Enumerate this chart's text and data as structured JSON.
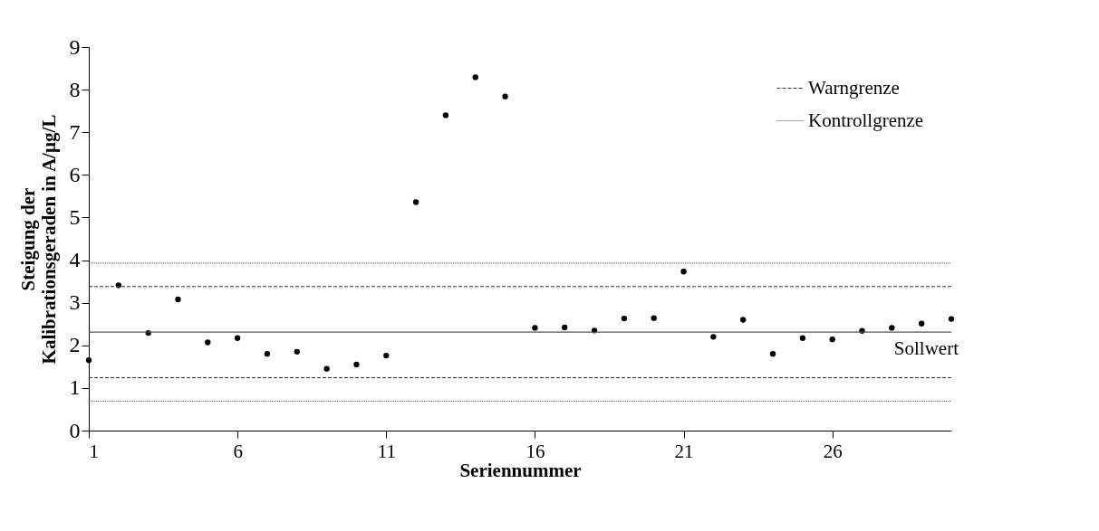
{
  "chart_data": {
    "type": "scatter",
    "xlabel": "Seriennummer",
    "ylabel": "Steigung der\nKalibrationsgeraden in A/µg/L",
    "series": [
      {
        "color": "#000000",
        "x": [
          1,
          2,
          3,
          4,
          5,
          6,
          7,
          8,
          9,
          10,
          11,
          12,
          13,
          14,
          15,
          16,
          17,
          18,
          19,
          20,
          21,
          22,
          23,
          24,
          25,
          26,
          27,
          28,
          29,
          30
        ],
        "values": [
          1.65,
          3.41,
          2.29,
          3.08,
          2.07,
          2.17,
          1.8,
          1.85,
          1.45,
          1.55,
          1.76,
          5.36,
          7.4,
          8.29,
          7.84,
          2.41,
          2.42,
          2.35,
          2.63,
          2.64,
          3.73,
          2.2,
          2.6,
          1.8,
          2.17,
          2.14,
          2.34,
          2.41,
          2.51,
          2.62
        ]
      }
    ],
    "xlim": [
      1,
      30
    ],
    "xticks": [
      1,
      6,
      11,
      16,
      21,
      26
    ],
    "ylim": [
      0,
      9
    ],
    "yticks": [
      0,
      1,
      2,
      3,
      4,
      5,
      6,
      7,
      8,
      9
    ],
    "ref_lines": [
      {
        "axis": "y",
        "value": 3.93,
        "label": "Kontrollgrenze",
        "line_style": "dotted",
        "color": "#555555"
      },
      {
        "axis": "y",
        "value": 3.38,
        "label": "Warngrenze",
        "line_style": "dashed",
        "color": "#333333"
      },
      {
        "axis": "y",
        "value": 2.31,
        "label": "Sollwert",
        "line_style": "solid",
        "color": "#555555"
      },
      {
        "axis": "y",
        "value": 1.24,
        "line_style": "dashed",
        "color": "#333333"
      },
      {
        "axis": "y",
        "value": 0.69,
        "line_style": "dotted",
        "color": "#555555"
      }
    ],
    "legend": "top right",
    "marker": "circle",
    "grid": false
  }
}
